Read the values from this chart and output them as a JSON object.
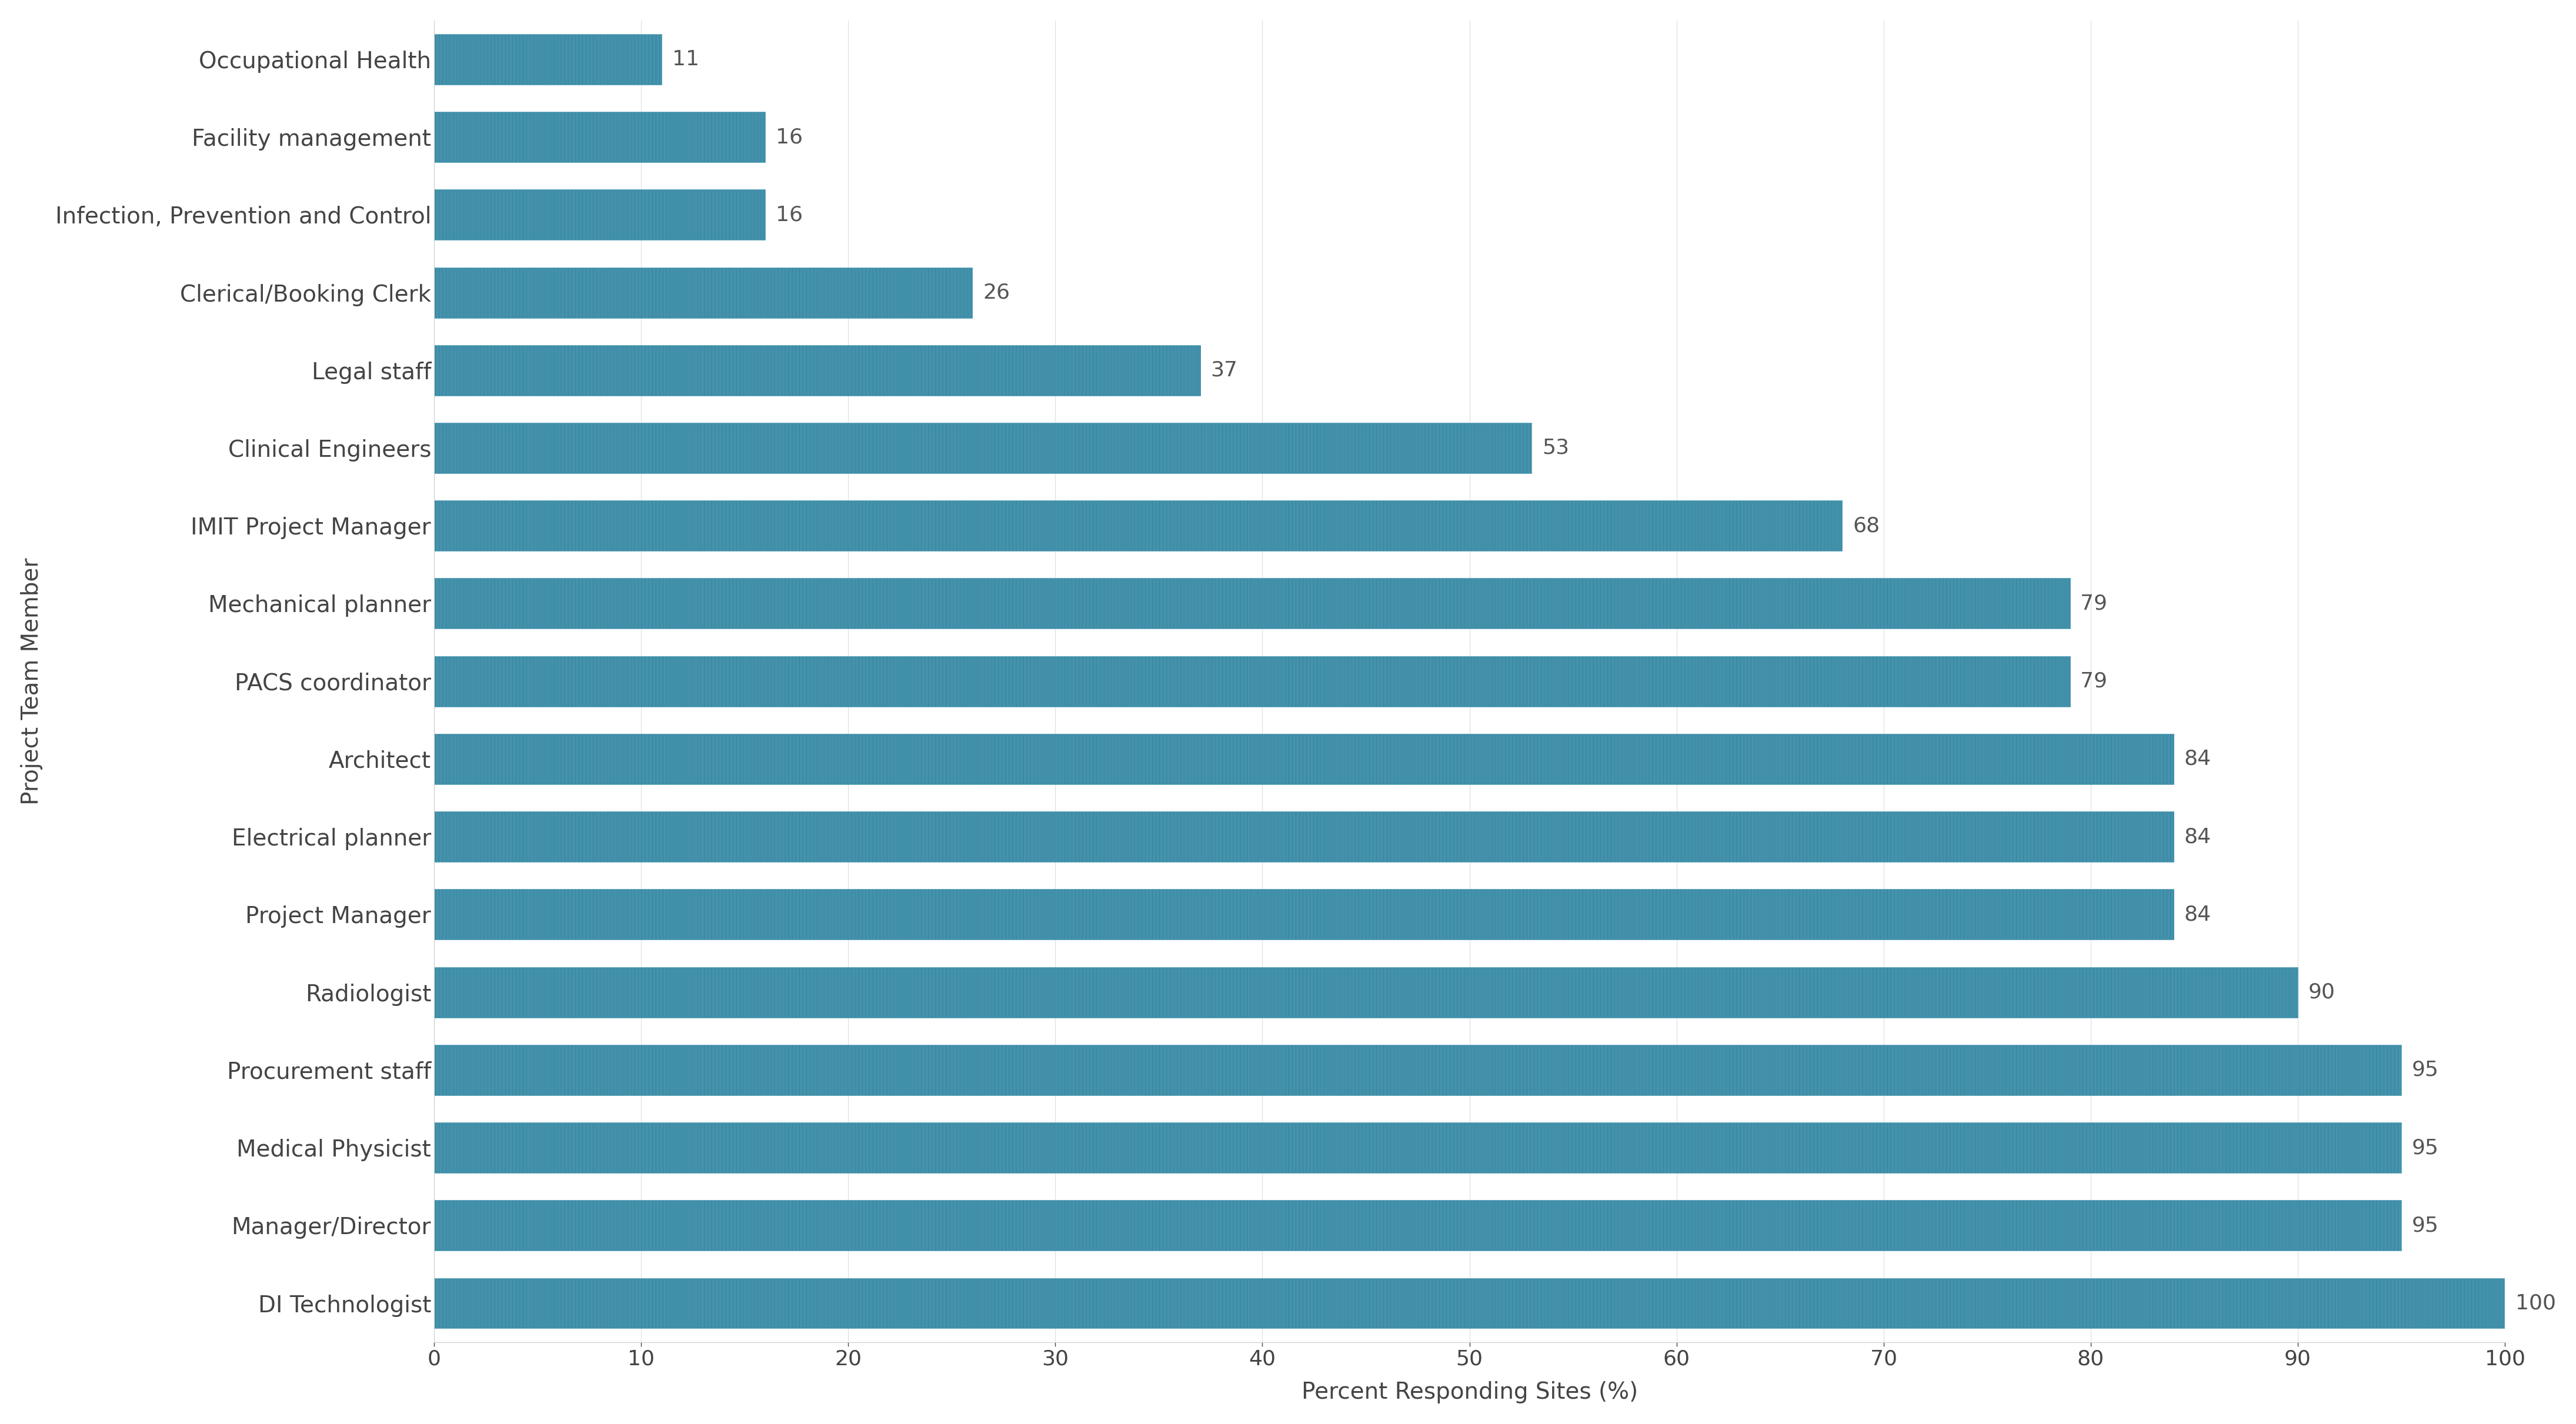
{
  "categories": [
    "Occupational Health",
    "Facility management",
    "Infection, Prevention and Control",
    "Clerical/Booking Clerk",
    "Legal staff",
    "Clinical Engineers",
    "IMIT Project Manager",
    "Mechanical planner",
    "PACS coordinator",
    "Architect",
    "Electrical planner",
    "Project Manager",
    "Radiologist",
    "Procurement staff",
    "Medical Physicist",
    "Manager/Director",
    "DI Technologist"
  ],
  "values": [
    11,
    16,
    16,
    26,
    37,
    53,
    68,
    79,
    79,
    84,
    84,
    84,
    90,
    95,
    95,
    95,
    100
  ],
  "bar_color": "#1a6e8a",
  "hatch_color": "#5fa8c0",
  "bar_hatch": "|||||||",
  "xlabel": "Percent Responding Sites (%)",
  "ylabel": "Project Team Member",
  "xlim": [
    0,
    100
  ],
  "xticks": [
    0,
    10,
    20,
    30,
    40,
    50,
    60,
    70,
    80,
    90,
    100
  ],
  "background_color": "#ffffff",
  "label_fontsize": 28,
  "tick_fontsize": 26,
  "value_fontsize": 26,
  "ylabel_fontsize": 28,
  "xlabel_fontsize": 28,
  "bar_height": 0.65,
  "value_color": "#555555"
}
